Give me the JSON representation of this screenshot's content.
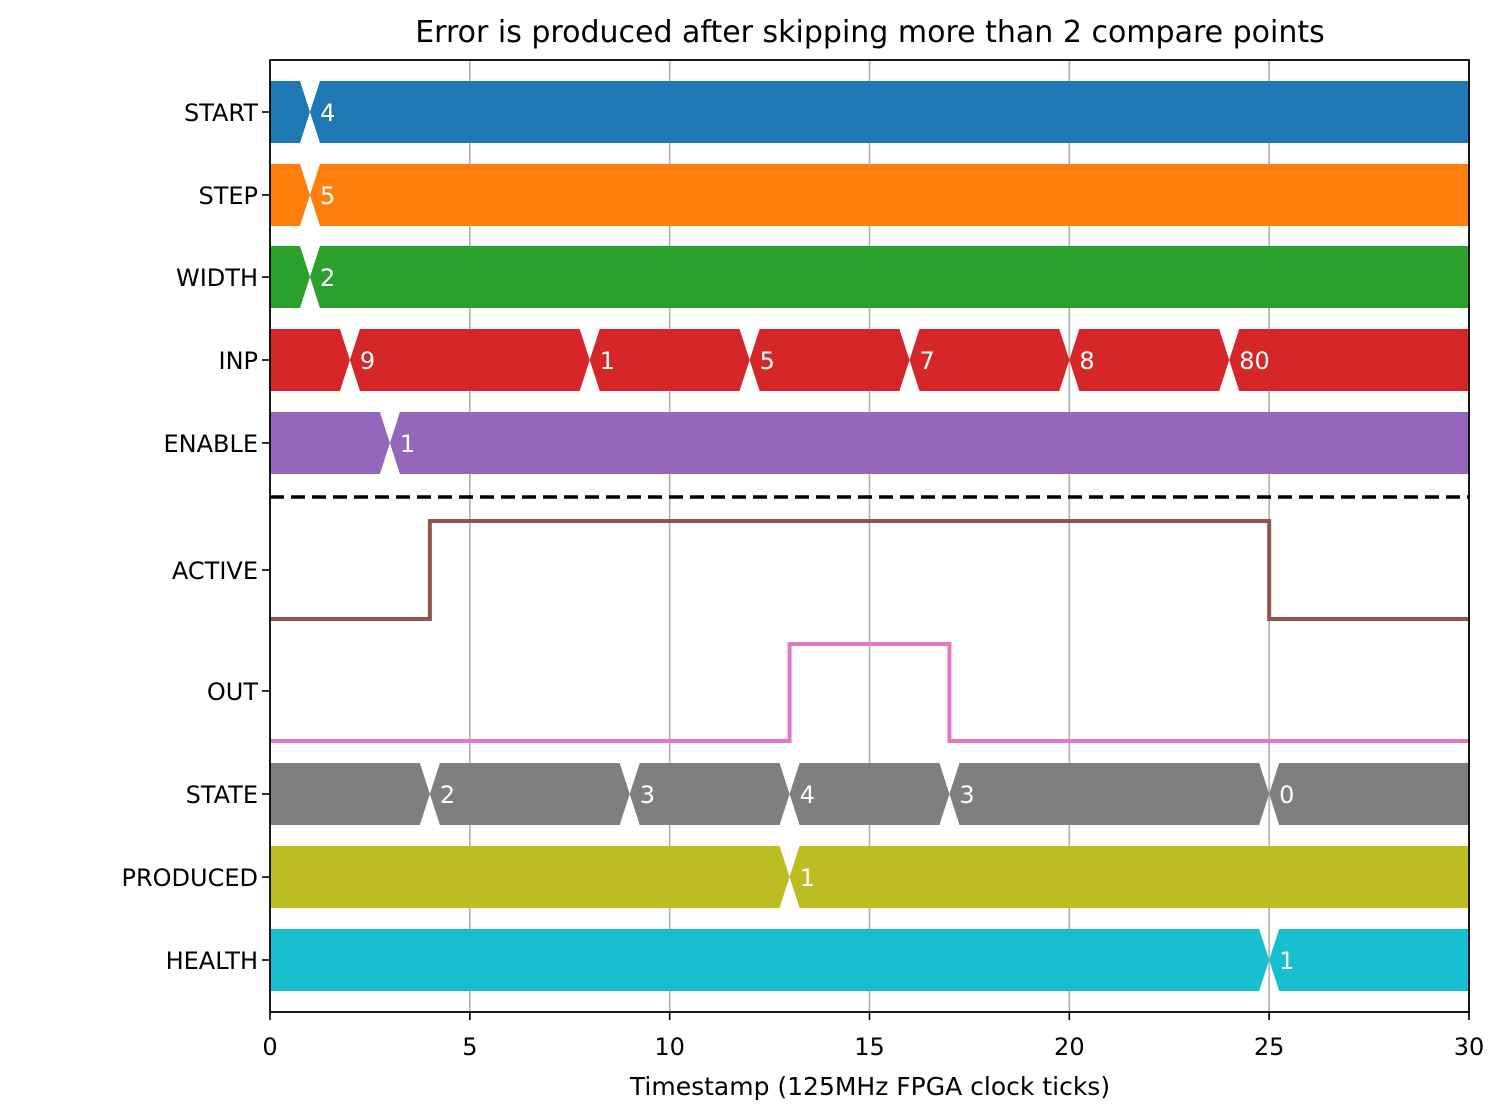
{
  "chart_data": {
    "type": "timing-diagram",
    "title": "Error is produced after skipping more than 2 compare points",
    "xlabel": "Timestamp (125MHz FPGA clock ticks)",
    "xlim": [
      0,
      30
    ],
    "xticks": [
      0,
      5,
      10,
      15,
      20,
      25,
      30
    ],
    "grid": "vertical",
    "separator_after_signal": "ENABLE",
    "signals": [
      {
        "name": "START",
        "kind": "bus",
        "color": "#1f77b4",
        "segments": [
          {
            "t": 0,
            "value": ""
          },
          {
            "t": 1,
            "value": "4"
          }
        ]
      },
      {
        "name": "STEP",
        "kind": "bus",
        "color": "#ff7f0e",
        "segments": [
          {
            "t": 0,
            "value": ""
          },
          {
            "t": 1,
            "value": "5"
          }
        ]
      },
      {
        "name": "WIDTH",
        "kind": "bus",
        "color": "#2ca02c",
        "segments": [
          {
            "t": 0,
            "value": ""
          },
          {
            "t": 1,
            "value": "2"
          }
        ]
      },
      {
        "name": "INP",
        "kind": "bus",
        "color": "#d62728",
        "segments": [
          {
            "t": 0,
            "value": ""
          },
          {
            "t": 2,
            "value": "9"
          },
          {
            "t": 8,
            "value": "1"
          },
          {
            "t": 12,
            "value": "5"
          },
          {
            "t": 16,
            "value": "7"
          },
          {
            "t": 20,
            "value": "8"
          },
          {
            "t": 24,
            "value": "80"
          }
        ]
      },
      {
        "name": "ENABLE",
        "kind": "bus",
        "color": "#9467bd",
        "segments": [
          {
            "t": 0,
            "value": ""
          },
          {
            "t": 3,
            "value": "1"
          }
        ]
      },
      {
        "name": "ACTIVE",
        "kind": "bit",
        "color": "#8c564b",
        "points": [
          {
            "t": 0,
            "v": 0
          },
          {
            "t": 4,
            "v": 1
          },
          {
            "t": 25,
            "v": 0
          }
        ]
      },
      {
        "name": "OUT",
        "kind": "bit",
        "color": "#e377c2",
        "points": [
          {
            "t": 0,
            "v": 0
          },
          {
            "t": 13,
            "v": 1
          },
          {
            "t": 17,
            "v": 0
          }
        ]
      },
      {
        "name": "STATE",
        "kind": "bus",
        "color": "#7f7f7f",
        "segments": [
          {
            "t": 0,
            "value": ""
          },
          {
            "t": 4,
            "value": "2"
          },
          {
            "t": 9,
            "value": "3"
          },
          {
            "t": 13,
            "value": "4"
          },
          {
            "t": 17,
            "value": "3"
          },
          {
            "t": 25,
            "value": "0"
          }
        ]
      },
      {
        "name": "PRODUCED",
        "kind": "bus",
        "color": "#bcbd22",
        "segments": [
          {
            "t": 0,
            "value": ""
          },
          {
            "t": 13,
            "value": "1"
          }
        ]
      },
      {
        "name": "HEALTH",
        "kind": "bus",
        "color": "#17becf",
        "segments": [
          {
            "t": 0,
            "value": ""
          },
          {
            "t": 25,
            "value": "1"
          }
        ]
      }
    ]
  }
}
